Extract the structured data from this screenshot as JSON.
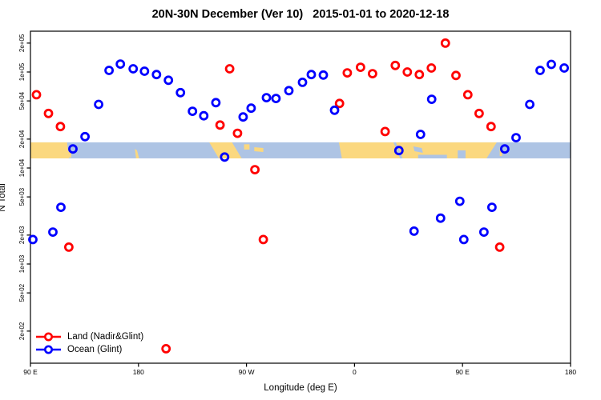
{
  "title": "20N-30N December (Ver 10)   2015-01-01 to 2020-12-18",
  "chart_data": {
    "type": "scatter",
    "title": "20N-30N December (Ver 10)   2015-01-01 to 2020-12-18",
    "xlabel": "Longitude (deg E)",
    "ylabel": "N Total",
    "marker": "open-circle",
    "grid": false,
    "x_axis": {
      "range_deg": [
        90,
        540
      ],
      "tick_values_deg": [
        90,
        180,
        270,
        360,
        450,
        540
      ],
      "tick_labels": [
        "90 E",
        "180",
        "90 W",
        "0",
        "90 E",
        "180"
      ]
    },
    "y_axis": {
      "scale": "log10",
      "tick_values": [
        200000,
        100000,
        50000,
        20000,
        10000,
        5000,
        2000,
        1000,
        500,
        200
      ],
      "tick_labels": [
        "2e+05",
        "1e+05",
        "5e+04",
        "2e+04",
        "1e+04",
        "5e+03",
        "2e+03",
        "1e+03",
        "5e+02",
        "2e+02"
      ],
      "labels_rotated": true
    },
    "legend": [
      {
        "label": "Land (Nadir&Glint)",
        "color": "#ff0000"
      },
      {
        "label": "Ocean (Glint)",
        "color": "#0000ff"
      }
    ],
    "series": [
      {
        "name": "Land (Nadir&Glint)",
        "color": "#ff0000",
        "points": [
          [
            95,
            58000
          ],
          [
            105,
            37000
          ],
          [
            115,
            27000
          ],
          [
            122,
            1500
          ],
          [
            203,
            131
          ],
          [
            248,
            28000
          ],
          [
            256,
            108000
          ],
          [
            262.5,
            23000
          ],
          [
            277,
            9600
          ],
          [
            284,
            1800
          ],
          [
            347.5,
            47000
          ],
          [
            354,
            98000
          ],
          [
            365,
            112000
          ],
          [
            375,
            96000
          ],
          [
            385.5,
            24000
          ],
          [
            394,
            117000
          ],
          [
            404,
            100000
          ],
          [
            414,
            94000
          ],
          [
            424,
            110000
          ],
          [
            435.7,
            200000
          ],
          [
            444.5,
            92000
          ],
          [
            454.4,
            58000
          ],
          [
            463.8,
            37000
          ],
          [
            473.8,
            27000
          ],
          [
            481,
            1500
          ]
        ]
      },
      {
        "name": "Ocean (Glint)",
        "color": "#0000ff",
        "points": [
          [
            92,
            1800
          ],
          [
            108.7,
            2150
          ],
          [
            115.4,
            3900
          ],
          [
            125.4,
            15800
          ],
          [
            135.5,
            21200
          ],
          [
            146.8,
            46000
          ],
          [
            155.5,
            104000
          ],
          [
            164.9,
            121000
          ],
          [
            175.6,
            108000
          ],
          [
            185,
            102000
          ],
          [
            195,
            94000
          ],
          [
            205,
            82000
          ],
          [
            215,
            61000
          ],
          [
            225,
            39000
          ],
          [
            234.4,
            35000
          ],
          [
            244.5,
            48000
          ],
          [
            251.8,
            13000
          ],
          [
            267.2,
            34000
          ],
          [
            273.9,
            42000
          ],
          [
            286.6,
            54000
          ],
          [
            294.6,
            53000
          ],
          [
            305.3,
            64000
          ],
          [
            316.7,
            78000
          ],
          [
            324,
            94000
          ],
          [
            334,
            93000
          ],
          [
            343.4,
            40000
          ],
          [
            397,
            15200
          ],
          [
            409.6,
            2200
          ],
          [
            415,
            22400
          ],
          [
            424.3,
            52000
          ],
          [
            431.7,
            3000
          ],
          [
            447.7,
            4500
          ],
          [
            451.1,
            1800
          ],
          [
            467.8,
            2150
          ],
          [
            474.5,
            3900
          ],
          [
            485.2,
            15800
          ],
          [
            494.6,
            20700
          ],
          [
            506,
            46000
          ],
          [
            514.6,
            104000
          ],
          [
            524,
            120000
          ],
          [
            534.7,
            110000
          ]
        ]
      }
    ],
    "map_band": {
      "description": "world-map strip of the 20N-30N latitude band drawn across the plot",
      "value_range": [
        12600,
        18500
      ],
      "ocean_color": "#aec4e4",
      "land_color": "#fbd87f",
      "land_patches": [
        [
          [
            90,
            0
          ],
          [
            120.5,
            0
          ],
          [
            122,
            1
          ],
          [
            90,
            1
          ]
        ],
        [
          [
            121.5,
            0.55
          ],
          [
            124,
            0.55
          ],
          [
            124,
            0.95
          ],
          [
            121.5,
            0.95
          ]
        ],
        [
          [
            177,
            0.4
          ],
          [
            178.8,
            0.5
          ],
          [
            180.5,
            1
          ],
          [
            178,
            1
          ]
        ],
        [
          [
            239,
            0
          ],
          [
            258,
            0
          ],
          [
            266,
            1
          ],
          [
            247,
            1
          ]
        ],
        [
          [
            268,
            0.12
          ],
          [
            272.5,
            0.12
          ],
          [
            272.5,
            0.45
          ],
          [
            268,
            0.45
          ]
        ],
        [
          [
            276.5,
            0.3
          ],
          [
            284,
            0.35
          ],
          [
            284,
            0.6
          ],
          [
            276.5,
            0.55
          ]
        ],
        [
          [
            347,
            0
          ],
          [
            478.5,
            0
          ],
          [
            470,
            1
          ],
          [
            349.5,
            1
          ]
        ],
        [
          [
            481,
            0.45
          ],
          [
            483,
            0.45
          ],
          [
            483,
            0.85
          ],
          [
            481,
            0.85
          ]
        ]
      ],
      "sea_patches": [
        [
          [
            392.5,
            0
          ],
          [
            394.5,
            0
          ],
          [
            400,
            1
          ],
          [
            398,
            1
          ]
        ],
        [
          [
            409,
            0.25
          ],
          [
            416,
            0.35
          ],
          [
            417,
            0.65
          ],
          [
            410,
            0.55
          ]
        ],
        [
          [
            413,
            0.78
          ],
          [
            437,
            0.78
          ],
          [
            437,
            1
          ],
          [
            413,
            1
          ]
        ],
        [
          [
            446,
            0.5
          ],
          [
            452.5,
            0.5
          ],
          [
            452.5,
            1
          ],
          [
            446,
            1
          ]
        ]
      ]
    }
  }
}
